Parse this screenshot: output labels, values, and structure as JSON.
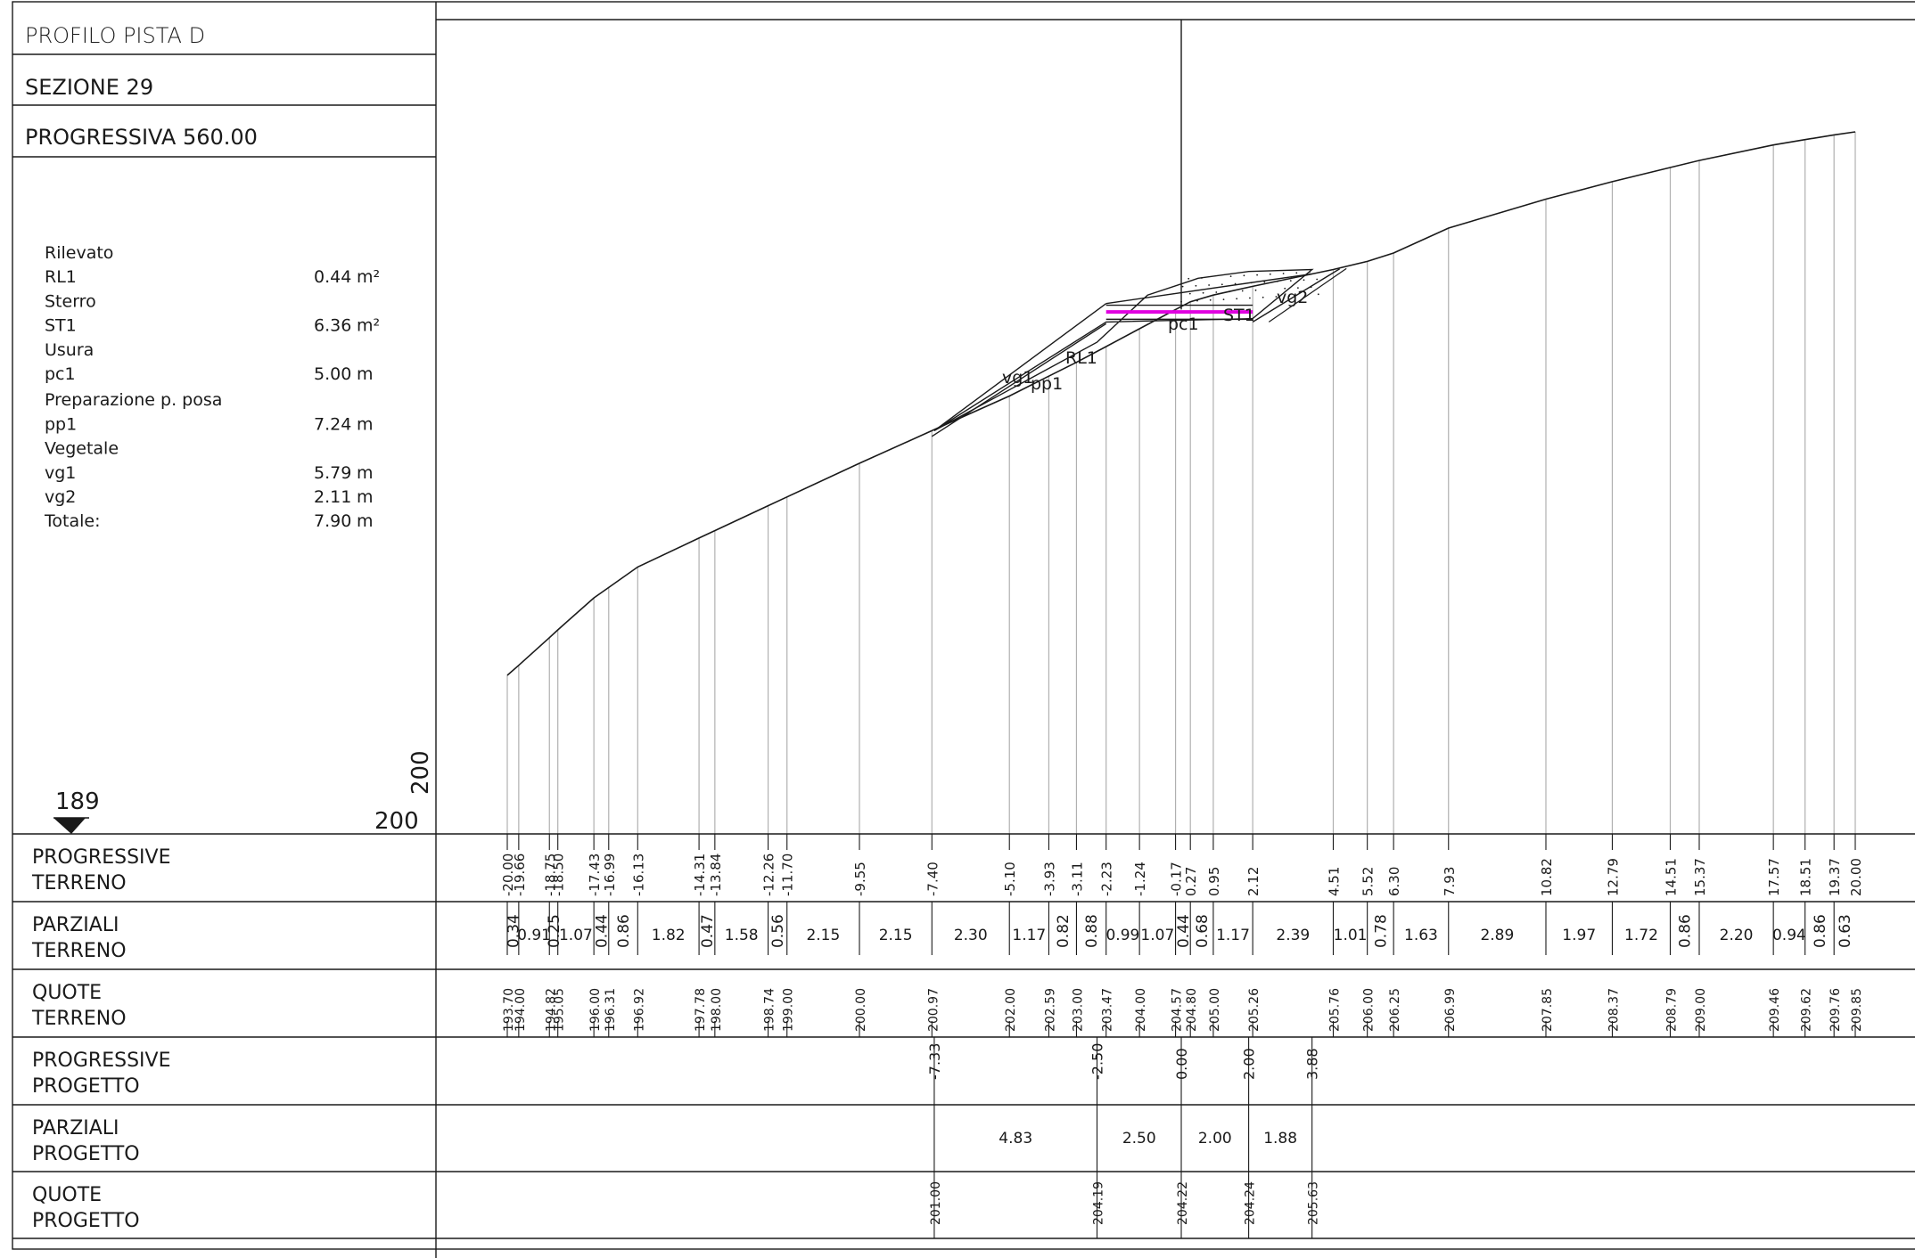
{
  "header": {
    "profile": "PROFILO  PISTA D",
    "section": "SEZIONE  29",
    "progressive": "PROGRESSIVA  560.00"
  },
  "quantities": [
    {
      "label": "Rilevato",
      "value": "",
      "unit": ""
    },
    {
      "label": "RL1",
      "value": "0.44",
      "unit": "m²"
    },
    {
      "label": "Sterro",
      "value": "",
      "unit": ""
    },
    {
      "label": "ST1",
      "value": "6.36",
      "unit": "m²"
    },
    {
      "label": "Usura",
      "value": "",
      "unit": ""
    },
    {
      "label": "pc1",
      "value": "5.00",
      "unit": "m"
    },
    {
      "label": "Preparazione  p. posa",
      "value": "",
      "unit": ""
    },
    {
      "label": "pp1",
      "value": "7.24",
      "unit": "m"
    },
    {
      "label": "Vegetale",
      "value": "",
      "unit": ""
    },
    {
      "label": "vg1",
      "value": "5.79",
      "unit": "m"
    },
    {
      "label": "vg2",
      "value": "2.11",
      "unit": "m"
    },
    {
      "label": "Totale:",
      "value": "7.90",
      "unit": "m"
    }
  ],
  "datum": {
    "left": "189",
    "bottom": "200",
    "vertical": "200"
  },
  "drawing_labels": {
    "vg1": "vg1",
    "pp1": "pp1",
    "rl1": "RL1",
    "pc1": "pc1",
    "st1": "ST1",
    "vg2": "vg2"
  },
  "row_labels": [
    [
      "PROGRESSIVE",
      "TERRENO"
    ],
    [
      "PARZIALI",
      "TERRENO"
    ],
    [
      "QUOTE",
      "TERRENO"
    ],
    [
      "PROGRESSIVE",
      "PROGETTO"
    ],
    [
      "PARZIALI",
      "PROGETTO"
    ],
    [
      "QUOTE",
      "PROGETTO"
    ]
  ],
  "terrain": {
    "progressive": [
      "-20.00",
      "-19.66",
      "-18.75",
      "-18.50",
      "-17.43",
      "-16.99",
      "-16.13",
      "-14.31",
      "-13.84",
      "-12.26",
      "-11.70",
      "-9.55",
      "-7.40",
      "-5.10",
      "-3.93",
      "-3.11",
      "-2.23",
      "-1.24",
      "-0.17",
      "0.27",
      "0.95",
      "2.12",
      "4.51",
      "5.52",
      "6.30",
      "7.93",
      "10.82",
      "12.79",
      "14.51",
      "15.37",
      "17.57",
      "18.51",
      "19.37",
      "20.00"
    ],
    "elevations": [
      "193.70",
      "194.00",
      "194.82",
      "195.05",
      "196.00",
      "196.31",
      "196.92",
      "197.78",
      "198.00",
      "198.74",
      "199.00",
      "200.00",
      "200.97",
      "202.00",
      "202.59",
      "203.00",
      "203.47",
      "204.00",
      "204.57",
      "204.80",
      "205.00",
      "205.26",
      "205.76",
      "206.00",
      "206.25",
      "206.99",
      "207.85",
      "208.37",
      "208.79",
      "209.00",
      "209.46",
      "209.62",
      "209.76",
      "209.85"
    ],
    "partials": [
      "0.34",
      "0.91",
      "0.25",
      "1.07",
      "0.44",
      "0.86",
      "1.82",
      "0.47",
      "1.58",
      "0.56",
      "2.15",
      "2.15",
      "2.30",
      "1.17",
      "0.82",
      "0.88",
      "0.99",
      "1.07",
      "0.44",
      "0.68",
      "1.17",
      "2.39",
      "1.01",
      "0.78",
      "1.63",
      "2.89",
      "1.97",
      "1.72",
      "0.86",
      "2.20",
      "0.94",
      "0.86",
      "0.63"
    ]
  },
  "project": {
    "progressive": [
      "-7.33",
      "-2.50",
      "0.00",
      "2.00",
      "3.88"
    ],
    "partials": [
      "4.83",
      "2.50",
      "2.00",
      "1.88"
    ],
    "elevations": [
      "201.00",
      "204.19",
      "204.22",
      "204.24",
      "205.63"
    ]
  },
  "colors": {
    "line": "#1a1a1a",
    "hatch": "#b0b0b0",
    "pavement": "#e000e0"
  }
}
